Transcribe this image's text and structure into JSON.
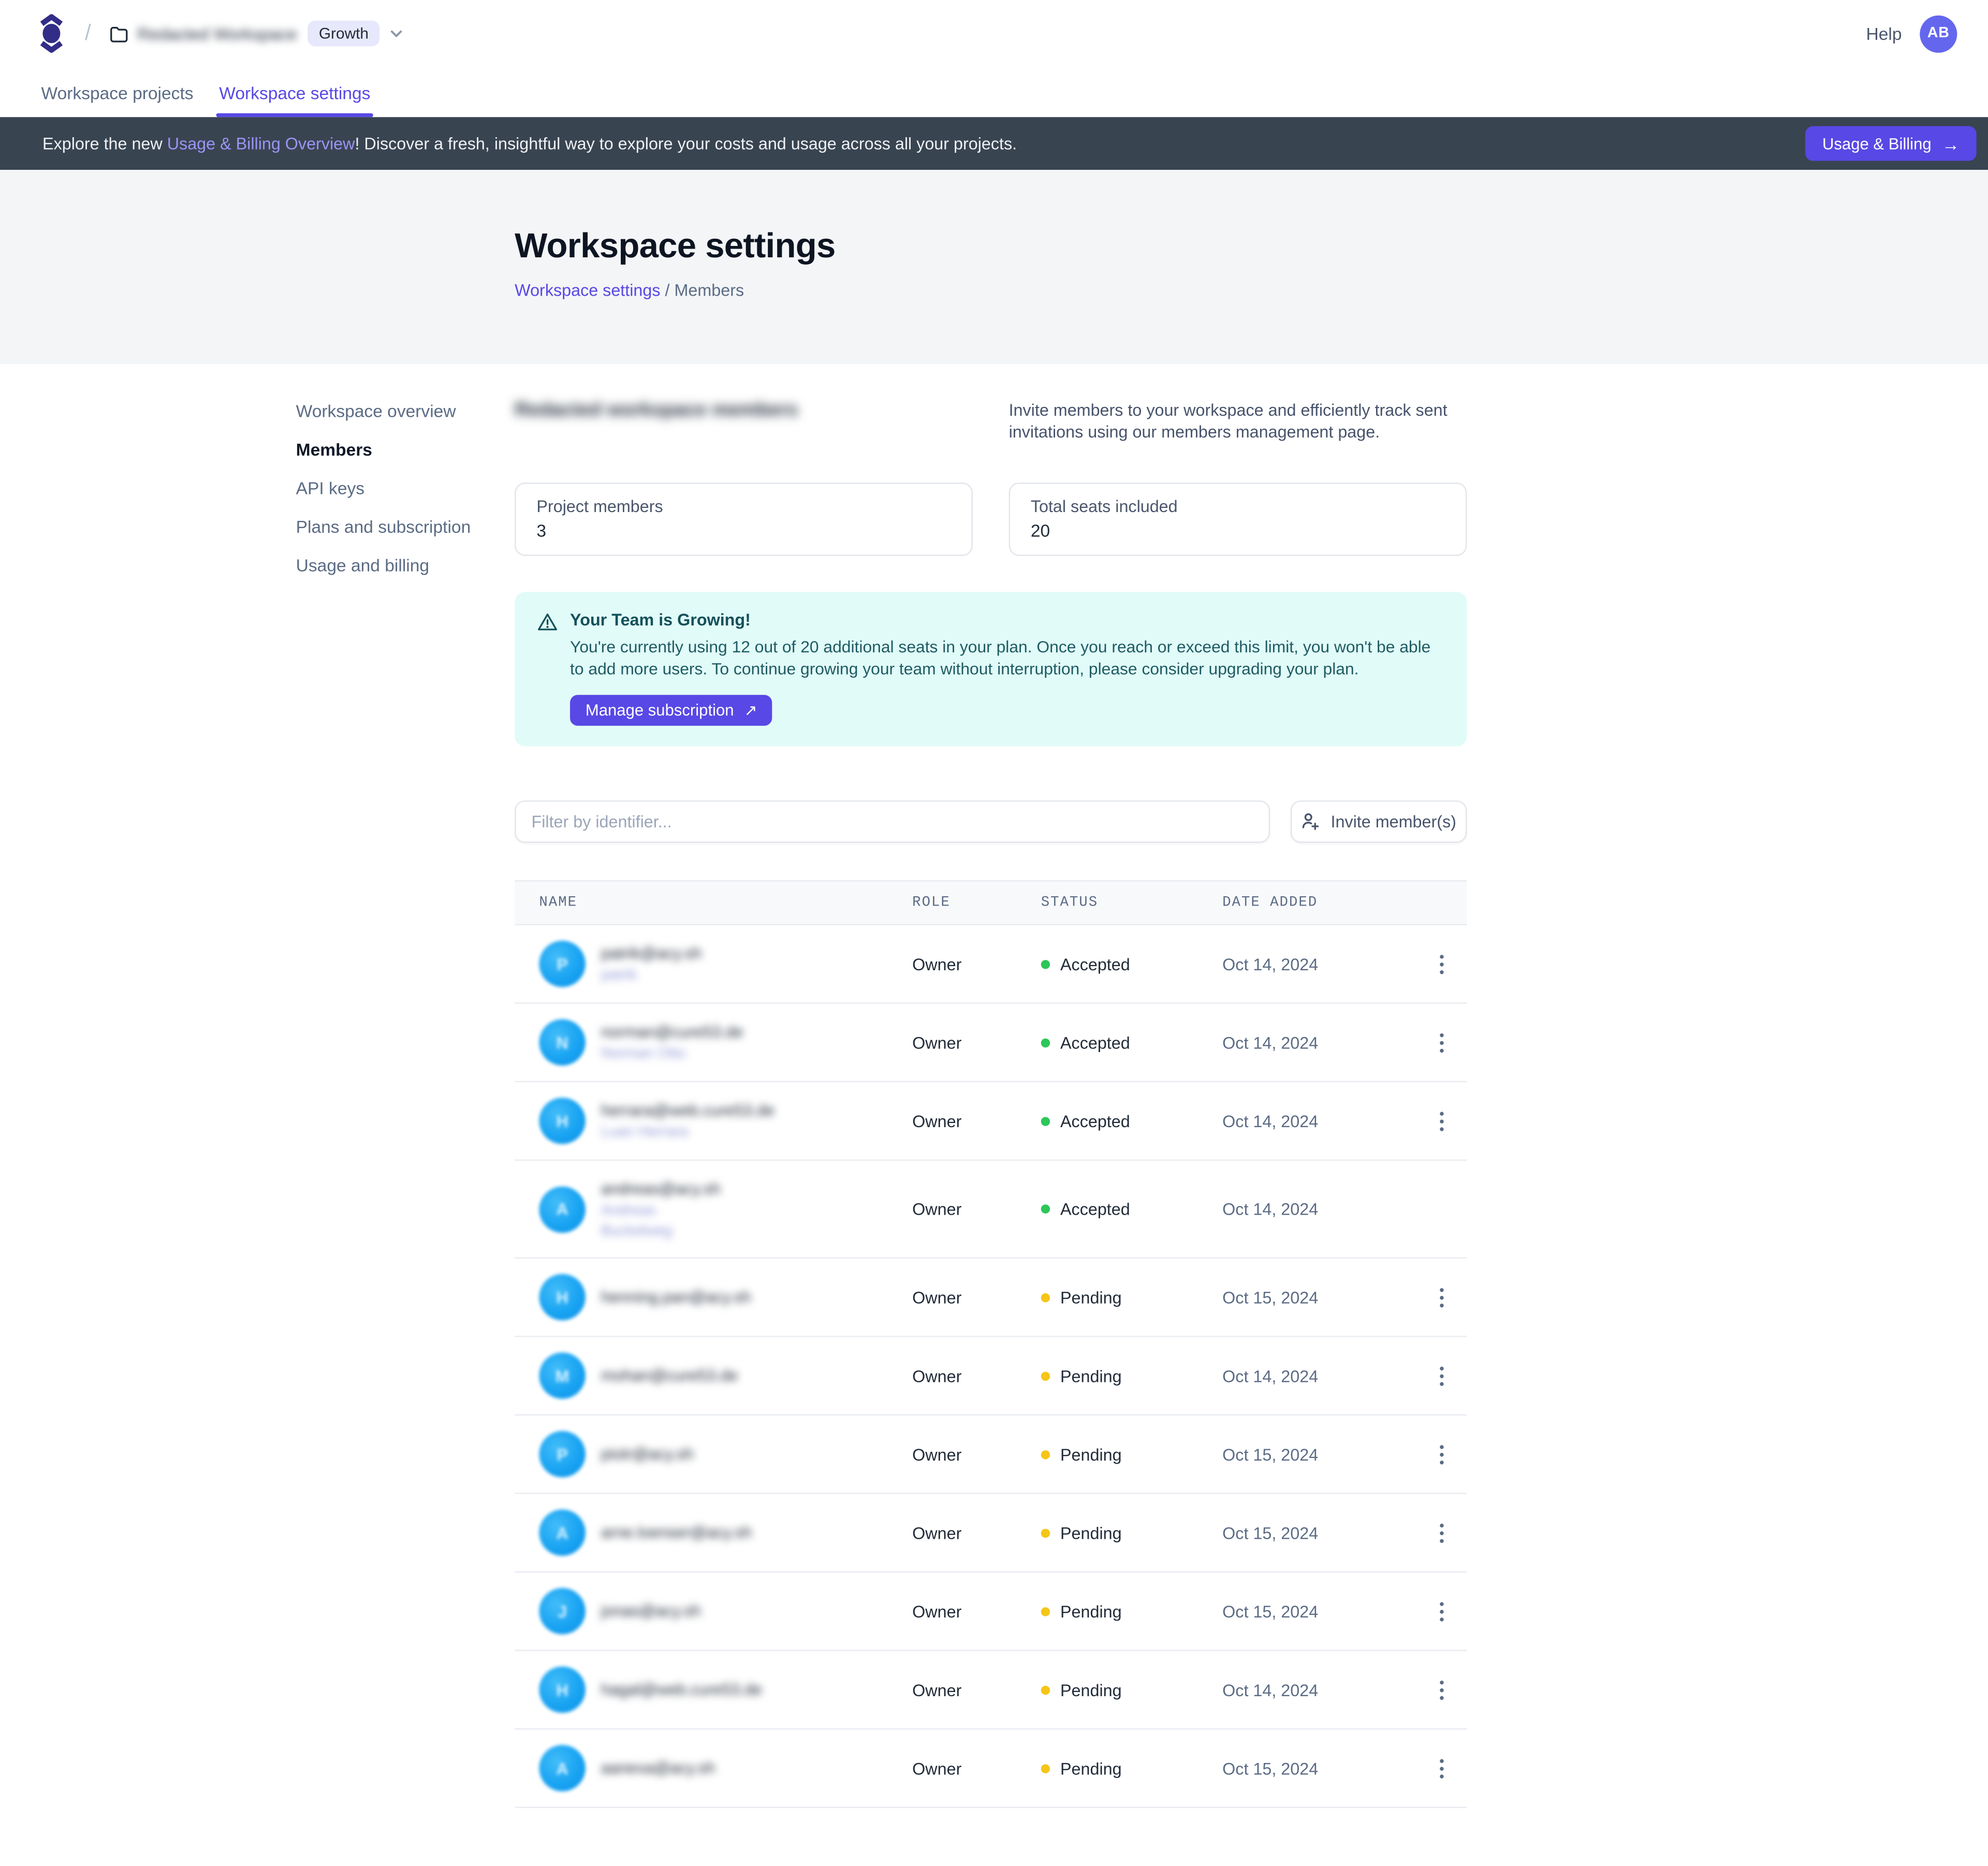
{
  "colors": {
    "accent": "#5848e5",
    "banner_bg": "#394451",
    "banner_link": "#9a95f5",
    "status_accepted": "#2dc658",
    "status_pending": "#f5c518",
    "avatar_blue": "#18a3f2",
    "logo_indigo": "#322d86",
    "alert_bg": "#e1fbf8",
    "alert_text": "#14505a"
  },
  "header": {
    "slash": "/",
    "workspace_name": "Redacted Workspace",
    "workspace_redacted": true,
    "badge": "Growth",
    "help": "Help",
    "avatar_initials": "AB"
  },
  "tabs": [
    {
      "label": "Workspace projects",
      "active": false
    },
    {
      "label": "Workspace settings",
      "active": true
    }
  ],
  "banner": {
    "prefix": "Explore the new ",
    "link": "Usage & Billing Overview",
    "suffix": "! Discover a fresh, insightful way to explore your costs and usage across all your projects.",
    "button": "Usage & Billing",
    "button_arrow": "→"
  },
  "hero": {
    "title": "Workspace settings",
    "breadcrumb_link": "Workspace settings",
    "breadcrumb_sep": " / ",
    "breadcrumb_current": "Members"
  },
  "sidebar": {
    "items": [
      {
        "label": "Workspace overview",
        "active": false
      },
      {
        "label": "Members",
        "active": true
      },
      {
        "label": "API keys",
        "active": false
      },
      {
        "label": "Plans and subscription",
        "active": false
      },
      {
        "label": "Usage and billing",
        "active": false
      }
    ]
  },
  "members_section": {
    "heading": "Redacted workspace members",
    "heading_redacted": true,
    "intro": "Invite members to your workspace and efficiently track sent invitations using our members management page.",
    "cards": [
      {
        "label": "Project members",
        "value": "3"
      },
      {
        "label": "Total seats included",
        "value": "20"
      }
    ]
  },
  "alert": {
    "title": "Your Team is Growing!",
    "body": "You're currently using 12 out of 20 additional seats in your plan. Once you reach or exceed this limit, you won't be able to add more users. To continue growing your team without interruption, please consider upgrading your plan.",
    "button": "Manage subscription",
    "button_arrow": "↗"
  },
  "toolbar": {
    "filter_placeholder": "Filter by identifier...",
    "invite_button": "Invite member(s)"
  },
  "table": {
    "headers": [
      "NAME",
      "ROLE",
      "STATUS",
      "DATE ADDED"
    ],
    "rows": [
      {
        "email": "patrik@acy.sh",
        "sub_lines": [
          "patrik"
        ],
        "initials": "P",
        "role": "Owner",
        "status": "Accepted",
        "date": "Oct 14, 2024",
        "has_menu": true,
        "redacted": true
      },
      {
        "email": "norman@cure53.de",
        "sub_lines": [
          "Norman Otto"
        ],
        "initials": "N",
        "role": "Owner",
        "status": "Accepted",
        "date": "Oct 14, 2024",
        "has_menu": true,
        "redacted": true
      },
      {
        "email": "herrara@web.cure53.de",
        "sub_lines": [
          "Luan Herrara"
        ],
        "initials": "H",
        "role": "Owner",
        "status": "Accepted",
        "date": "Oct 14, 2024",
        "has_menu": true,
        "redacted": true
      },
      {
        "email": "andreas@acy.sh",
        "sub_lines": [
          "Andreas",
          "Buckelweg"
        ],
        "initials": "A",
        "role": "Owner",
        "status": "Accepted",
        "date": "Oct 14, 2024",
        "has_menu": false,
        "redacted": true
      },
      {
        "email": "henning.pan@acy.sh",
        "sub_lines": [],
        "initials": "H",
        "role": "Owner",
        "status": "Pending",
        "date": "Oct 15, 2024",
        "has_menu": true,
        "redacted": true
      },
      {
        "email": "mohan@cure53.de",
        "sub_lines": [],
        "initials": "M",
        "role": "Owner",
        "status": "Pending",
        "date": "Oct 14, 2024",
        "has_menu": true,
        "redacted": true
      },
      {
        "email": "piotr@acy.sh",
        "sub_lines": [],
        "initials": "P",
        "role": "Owner",
        "status": "Pending",
        "date": "Oct 15, 2024",
        "has_menu": true,
        "redacted": true
      },
      {
        "email": "arne.loenser@acy.sh",
        "sub_lines": [],
        "initials": "A",
        "role": "Owner",
        "status": "Pending",
        "date": "Oct 15, 2024",
        "has_menu": true,
        "redacted": true
      },
      {
        "email": "jonas@acy.sh",
        "sub_lines": [],
        "initials": "J",
        "role": "Owner",
        "status": "Pending",
        "date": "Oct 15, 2024",
        "has_menu": true,
        "redacted": true
      },
      {
        "email": "hagal@web.cure53.de",
        "sub_lines": [],
        "initials": "H",
        "role": "Owner",
        "status": "Pending",
        "date": "Oct 14, 2024",
        "has_menu": true,
        "redacted": true
      },
      {
        "email": "aanexa@acy.sh",
        "sub_lines": [],
        "initials": "A",
        "role": "Owner",
        "status": "Pending",
        "date": "Oct 15, 2024",
        "has_menu": true,
        "redacted": true
      }
    ]
  }
}
